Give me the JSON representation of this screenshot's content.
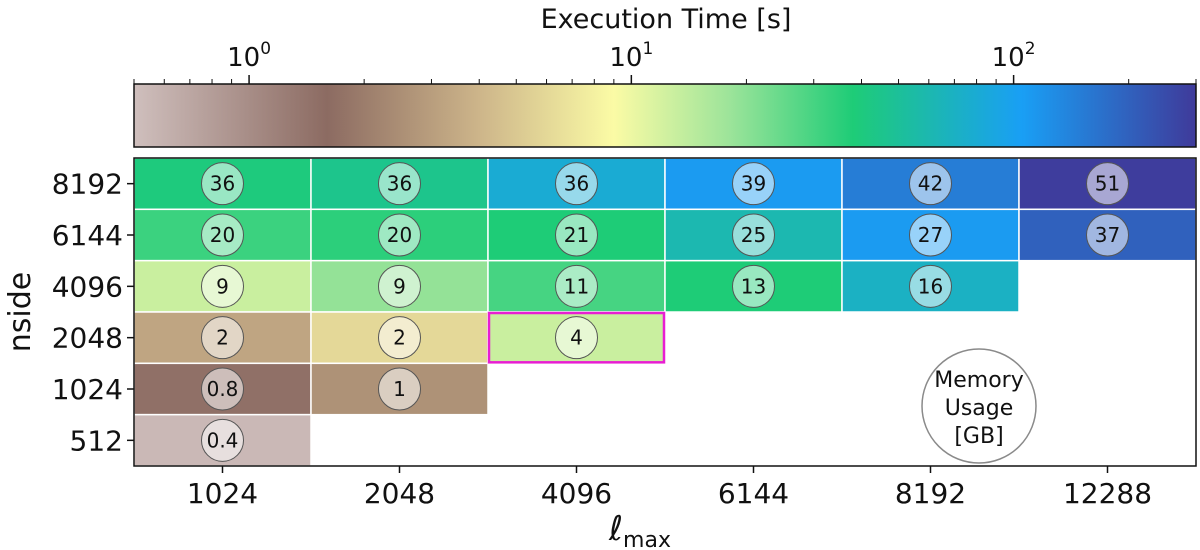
{
  "chart_data": {
    "type": "heatmap",
    "title": "",
    "xlabel": "ℓ",
    "xlabel_subscript": "max",
    "ylabel": "nside",
    "x_categories": [
      "1024",
      "2048",
      "4096",
      "6144",
      "8192",
      "12288"
    ],
    "y_categories": [
      "512",
      "1024",
      "2048",
      "4096",
      "6144",
      "8192"
    ],
    "colorbar": {
      "label": "Execution Time [s]",
      "scale": "log",
      "range": [
        0.5,
        300
      ],
      "position": "top",
      "tick_labels": [
        {
          "base": "10",
          "exp": "0",
          "value": 1
        },
        {
          "base": "10",
          "exp": "1",
          "value": 10
        },
        {
          "base": "10",
          "exp": "2",
          "value": 100
        }
      ],
      "stops": [
        {
          "value": 0.5,
          "color": "#cfbfbd"
        },
        {
          "value": 1.6,
          "color": "#8c6b62"
        },
        {
          "value": 4.0,
          "color": "#cdb58a"
        },
        {
          "value": 9.0,
          "color": "#fbfba5"
        },
        {
          "value": 18.0,
          "color": "#9de49a"
        },
        {
          "value": 38.0,
          "color": "#1ecc77"
        },
        {
          "value": 105.0,
          "color": "#199ff5"
        },
        {
          "value": 300.0,
          "color": "#3f3a9a"
        }
      ]
    },
    "cells": [
      {
        "x": "1024",
        "y": "8192",
        "time_s": 40,
        "memory_gb": "36"
      },
      {
        "x": "2048",
        "y": "8192",
        "time_s": 45,
        "memory_gb": "36"
      },
      {
        "x": "4096",
        "y": "8192",
        "time_s": 80,
        "memory_gb": "36"
      },
      {
        "x": "6144",
        "y": "8192",
        "time_s": 110,
        "memory_gb": "39"
      },
      {
        "x": "8192",
        "y": "8192",
        "time_s": 150,
        "memory_gb": "42"
      },
      {
        "x": "12288",
        "y": "8192",
        "time_s": 290,
        "memory_gb": "51"
      },
      {
        "x": "1024",
        "y": "6144",
        "time_s": 32,
        "memory_gb": "20"
      },
      {
        "x": "2048",
        "y": "6144",
        "time_s": 35,
        "memory_gb": "20"
      },
      {
        "x": "4096",
        "y": "6144",
        "time_s": 38,
        "memory_gb": "21"
      },
      {
        "x": "6144",
        "y": "6144",
        "time_s": 60,
        "memory_gb": "25"
      },
      {
        "x": "8192",
        "y": "6144",
        "time_s": 110,
        "memory_gb": "27"
      },
      {
        "x": "12288",
        "y": "6144",
        "time_s": 200,
        "memory_gb": "37"
      },
      {
        "x": "1024",
        "y": "4096",
        "time_s": 13,
        "memory_gb": "9"
      },
      {
        "x": "2048",
        "y": "4096",
        "time_s": 19,
        "memory_gb": "9"
      },
      {
        "x": "4096",
        "y": "4096",
        "time_s": 30,
        "memory_gb": "11"
      },
      {
        "x": "6144",
        "y": "4096",
        "time_s": 38,
        "memory_gb": "13"
      },
      {
        "x": "8192",
        "y": "4096",
        "time_s": 70,
        "memory_gb": "16"
      },
      {
        "x": "1024",
        "y": "2048",
        "time_s": 3.3,
        "memory_gb": "2"
      },
      {
        "x": "2048",
        "y": "2048",
        "time_s": 6,
        "memory_gb": "2"
      },
      {
        "x": "4096",
        "y": "2048",
        "time_s": 13,
        "memory_gb": "4",
        "highlighted": true
      },
      {
        "x": "1024",
        "y": "1024",
        "time_s": 1.5,
        "memory_gb": "0.8"
      },
      {
        "x": "2048",
        "y": "1024",
        "time_s": 2.6,
        "memory_gb": "1"
      },
      {
        "x": "1024",
        "y": "512",
        "time_s": 0.55,
        "memory_gb": "0.4"
      }
    ],
    "legend": {
      "lines": [
        "Memory",
        "Usage",
        "[GB]"
      ],
      "placement": "bottom-right"
    },
    "highlight_color": "#e81ed2"
  }
}
